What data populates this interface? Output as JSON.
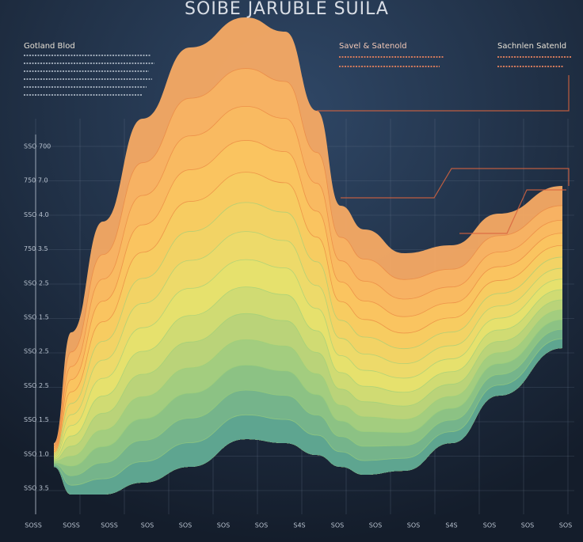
{
  "header": {
    "title": "SOIBE JARUBLE SUILA"
  },
  "panels": [
    {
      "heading": "Gotland Blod"
    },
    {
      "heading": "Savel & Satenold"
    },
    {
      "heading": "Sachnlen Satenld"
    }
  ],
  "y_labels": [
    "SSO 700",
    "750 7.0",
    "SSO 4.0",
    "750 3.5",
    "SSO 2.5",
    "SSO 1.5",
    "SSO 2.5",
    "SSO 2.5",
    "SSO 1.5",
    "SSO 1.0",
    "SSO 3.5"
  ],
  "x_labels": [
    "SOSS",
    "SOSS",
    "SOSS",
    "SOS",
    "SOS",
    "SOS",
    "SOS",
    "S4S",
    "SOS",
    "SOS",
    "SOS",
    "S4S",
    "SOS",
    "SOS",
    "SOS"
  ]
}
